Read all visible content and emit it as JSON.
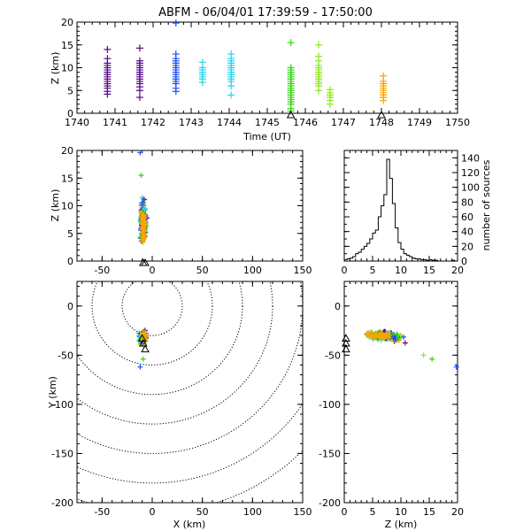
{
  "title": "ABFM - 06/04/01 17:39:59 - 17:50:00",
  "colors": {
    "purple": "#5a0a8c",
    "blue": "#1f4fff",
    "cyan": "#29d3f0",
    "green": "#33d411",
    "lime": "#8ee81a",
    "orange": "#f7a500",
    "navy": "#1a1a7a"
  },
  "chart_data": [
    {
      "id": "time_height",
      "type": "scatter",
      "xlabel": "Time (UT)",
      "ylabel": "Z (km)",
      "xlim": [
        1740,
        1750
      ],
      "ylim": [
        0,
        20
      ],
      "xticks": [
        1740,
        1741,
        1742,
        1743,
        1744,
        1745,
        1746,
        1747,
        1748,
        1749,
        1750
      ],
      "yticks": [
        0,
        5,
        10,
        15,
        20
      ],
      "groups": [
        {
          "x": 1740.8,
          "z": [
            4.2,
            4.8,
            5.5,
            6.0,
            6.5,
            7.0,
            7.5,
            8.0,
            8.5,
            9.0,
            9.5,
            10.0,
            10.5,
            11.0,
            12.0,
            14.0
          ],
          "color": "purple"
        },
        {
          "x": 1741.65,
          "z": [
            3.5,
            5.0,
            5.8,
            6.5,
            7.0,
            7.5,
            8.0,
            8.5,
            9.0,
            9.5,
            10.0,
            10.5,
            11.0,
            11.5,
            14.3
          ],
          "color": "purple"
        },
        {
          "x": 1742.6,
          "z": [
            4.8,
            5.5,
            6.5,
            7.0,
            7.5,
            8.0,
            8.5,
            9.0,
            9.5,
            10.0,
            10.5,
            11.0,
            11.5,
            12.0,
            13.0,
            19.8
          ],
          "color": "blue"
        },
        {
          "x": 1743.3,
          "z": [
            6.8,
            7.5,
            8.0,
            8.5,
            9.0,
            9.5,
            10.0,
            11.2
          ],
          "color": "cyan"
        },
        {
          "x": 1744.05,
          "z": [
            4.0,
            6.0,
            7.0,
            7.5,
            8.0,
            8.5,
            9.0,
            9.5,
            10.0,
            10.5,
            11.0,
            11.5,
            12.0,
            13.0
          ],
          "color": "cyan"
        },
        {
          "x": 1745.62,
          "z": [
            0.5,
            1.0,
            2.0,
            2.5,
            3.0,
            3.5,
            4.0,
            4.5,
            5.0,
            5.5,
            6.0,
            6.5,
            7.0,
            7.5,
            8.0,
            8.5,
            9.0,
            9.5,
            10.0,
            15.5
          ],
          "color": "green"
        },
        {
          "x": 1746.35,
          "z": [
            5.0,
            6.0,
            6.5,
            7.0,
            7.5,
            8.0,
            8.5,
            9.0,
            9.5,
            10.0,
            10.5,
            11.5,
            12.5,
            15.0
          ],
          "color": "lime"
        },
        {
          "x": 1746.65,
          "z": [
            2.0,
            2.8,
            3.5,
            4.0,
            4.5,
            5.2
          ],
          "color": "lime"
        },
        {
          "x": 1748.05,
          "z": [
            2.8,
            3.5,
            4.0,
            4.5,
            5.0,
            5.5,
            6.0,
            6.5,
            7.0,
            8.2
          ],
          "color": "orange"
        }
      ],
      "stations_x": [
        1745.62,
        1748.0
      ]
    },
    {
      "id": "x_height",
      "type": "scatter",
      "ylabel": "Z (km)",
      "xlim": [
        -75,
        150
      ],
      "ylim": [
        0,
        20
      ],
      "xticks": [
        -50,
        0,
        50,
        100,
        150
      ],
      "yticks": [
        0,
        5,
        10,
        15,
        20
      ]
    },
    {
      "id": "histogram",
      "type": "bar",
      "ylabel": "number of sources",
      "xlim": [
        0,
        20
      ],
      "ylim": [
        0,
        150
      ],
      "xticks": [
        0,
        5,
        10,
        15,
        20
      ],
      "yticks": [
        0,
        20,
        40,
        60,
        80,
        100,
        120,
        140
      ],
      "bin_width": 0.5,
      "bin_starts": [
        0.0,
        0.5,
        1.0,
        1.5,
        2.0,
        2.5,
        3.0,
        3.5,
        4.0,
        4.5,
        5.0,
        5.5,
        6.0,
        6.5,
        7.0,
        7.5,
        8.0,
        8.5,
        9.0,
        9.5,
        10.0,
        10.5,
        11.0,
        11.5,
        12.0,
        12.5,
        13.0,
        13.5,
        14.0,
        14.5,
        15.0,
        15.5,
        16.0,
        16.5,
        17.0,
        17.5,
        18.0,
        18.5,
        19.0,
        19.5
      ],
      "counts": [
        2,
        3,
        4,
        6,
        10,
        12,
        16,
        20,
        24,
        30,
        38,
        42,
        60,
        75,
        90,
        138,
        112,
        78,
        45,
        25,
        16,
        10,
        8,
        6,
        4,
        3,
        3,
        2,
        2,
        1,
        2,
        1,
        1,
        0,
        0,
        0,
        0,
        0,
        1,
        0
      ]
    },
    {
      "id": "plan_view",
      "type": "scatter",
      "xlabel": "X (km)",
      "ylabel": "Y (km)",
      "xlim": [
        -75,
        150
      ],
      "ylim": [
        -200,
        25
      ],
      "xticks": [
        -50,
        0,
        50,
        100,
        150
      ],
      "yticks": [
        -200,
        -150,
        -100,
        -50,
        0
      ],
      "range_ring_center": [
        0,
        0
      ],
      "range_rings_km": [
        30,
        60,
        90,
        120,
        150,
        180,
        210
      ]
    },
    {
      "id": "z_y",
      "type": "scatter",
      "xlabel": "Z (km)",
      "xlim": [
        0,
        20
      ],
      "ylim": [
        -200,
        25
      ],
      "xticks": [
        0,
        5,
        10,
        15,
        20
      ],
      "yticks": [
        -200,
        -150,
        -100,
        -50,
        0
      ]
    }
  ]
}
